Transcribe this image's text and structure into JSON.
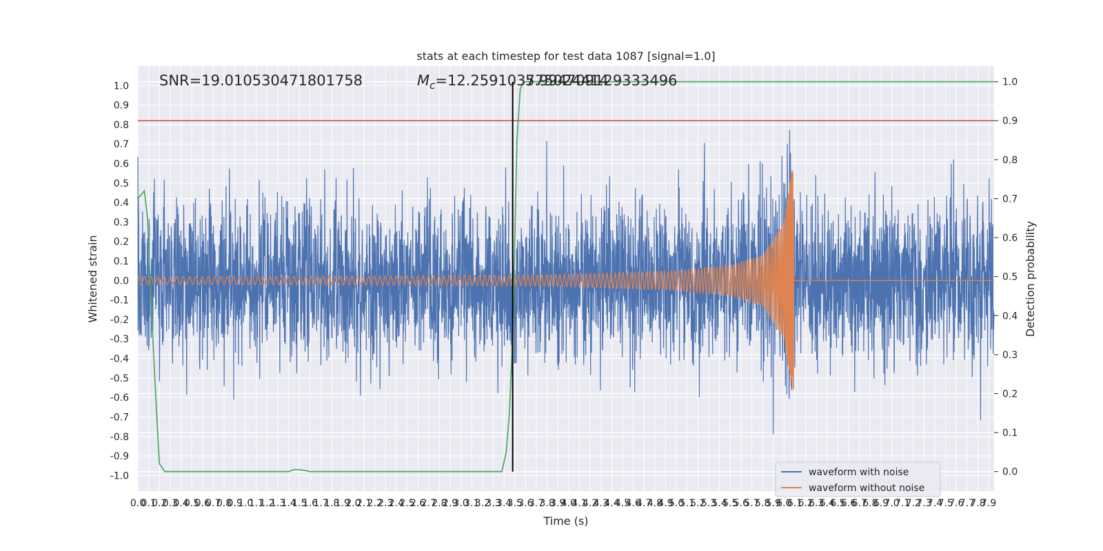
{
  "chart_data": {
    "type": "line",
    "title": "stats at each timestep for test data 1087 [signal=1.0]",
    "xlabel": "Time (s)",
    "ylabel": "Whitened strain",
    "ylabel_right": "Detection probability",
    "xlim": [
      0.0,
      7.95
    ],
    "ylim": [
      -1.08,
      1.1
    ],
    "ylim_right": [
      -0.05,
      1.04
    ],
    "x_ticks": [
      0.0,
      0.1,
      0.2,
      0.3,
      0.4,
      0.5,
      0.6,
      0.7,
      0.8,
      0.9,
      1.0,
      1.1,
      1.2,
      1.3,
      1.4,
      1.5,
      1.6,
      1.7,
      1.8,
      1.9,
      2.0,
      2.1,
      2.2,
      2.3,
      2.4,
      2.5,
      2.6,
      2.7,
      2.8,
      2.9,
      3.0,
      3.1,
      3.2,
      3.3,
      3.4,
      3.5,
      3.6,
      3.7,
      3.8,
      3.9,
      4.0,
      4.1,
      4.2,
      4.3,
      4.4,
      4.5,
      4.6,
      4.7,
      4.8,
      4.9,
      5.0,
      5.1,
      5.2,
      5.3,
      5.4,
      5.5,
      5.6,
      5.7,
      5.8,
      5.9,
      6.0,
      6.1,
      6.2,
      6.3,
      6.4,
      6.5,
      6.6,
      6.7,
      6.8,
      6.9,
      7.0,
      7.1,
      7.2,
      7.3,
      7.4,
      7.5,
      7.6,
      7.7,
      7.8,
      7.9
    ],
    "x_tick_labels": [
      "0.0",
      "0.1",
      "0.2",
      "0.3",
      "0.4",
      "0.5",
      "0.6",
      "0.7",
      "0.8",
      "0.9",
      "1.0",
      "1.1",
      "1.2",
      "1.3",
      "1.4",
      "1.5",
      "1.6",
      "1.7",
      "1.8",
      "1.9",
      "2.0",
      "2.1",
      "2.2",
      "2.3",
      "2.4",
      "2.5",
      "2.6",
      "2.7",
      "2.8",
      "2.9",
      "3.0",
      "3.1",
      "3.2",
      "3.3",
      "3.4",
      "3.5",
      "3.6",
      "3.7",
      "3.8",
      "3.9",
      "4.0",
      "4.1",
      "4.2",
      "4.3",
      "4.4",
      "4.5",
      "4.6",
      "4.7",
      "4.8",
      "4.9",
      "5.0",
      "5.1",
      "5.2",
      "5.3",
      "5.4",
      "5.5",
      "5.6",
      "5.7",
      "5.8",
      "5.9",
      "6.0",
      "6.1",
      "6.2",
      "6.3",
      "6.4",
      "6.5",
      "6.6",
      "6.7",
      "6.8",
      "6.9",
      "7.0",
      "7.1",
      "7.2",
      "7.3",
      "7.4",
      "7.5",
      "7.6",
      "7.7",
      "7.8",
      "7.9"
    ],
    "y_ticks": [
      1.0,
      0.9,
      0.8,
      0.7,
      0.6,
      0.5,
      0.4,
      0.3,
      0.2,
      0.1,
      0.0,
      -0.1,
      -0.2,
      -0.3,
      -0.4,
      -0.5,
      -0.6,
      -0.7,
      -0.8,
      -0.9,
      -1.0
    ],
    "y_tick_labels": [
      "1.0",
      "0.9",
      "0.8",
      "0.7",
      "0.6",
      "0.5",
      "0.4",
      "0.3",
      "0.2",
      "0.1",
      "0.0",
      "-0.1",
      "-0.2",
      "-0.3",
      "-0.4",
      "-0.5",
      "-0.6",
      "-0.7",
      "-0.8",
      "-0.9",
      "-1.0"
    ],
    "y_right_ticks": [
      1.0,
      0.9,
      0.8,
      0.7,
      0.6,
      0.5,
      0.4,
      0.3,
      0.2,
      0.1,
      0.0
    ],
    "y_right_tick_labels": [
      "1.0",
      "0.9",
      "0.8",
      "0.7",
      "0.6",
      "0.5",
      "0.4",
      "0.3",
      "0.2",
      "0.1",
      "0.0"
    ],
    "annotations": {
      "snr": "SNR=19.010530471801758",
      "mc_symbol": "M",
      "mc_sub": "c",
      "mc_value": "=12.259103775024414",
      "overlap": "5.994709129333496"
    },
    "grid": true,
    "legend_position": "lower-right",
    "series": [
      {
        "name": "waveform with noise",
        "color": "#4c72b0",
        "axis": "left",
        "noise_sd": 0.2,
        "noise_max_abs": 0.93
      },
      {
        "name": "waveform without noise",
        "color": "#dd8452",
        "axis": "left",
        "merger_time": 6.09,
        "amplitude_points": [
          [
            0.0,
            0.02
          ],
          [
            1.0,
            0.021
          ],
          [
            2.0,
            0.023
          ],
          [
            3.0,
            0.026
          ],
          [
            3.5,
            0.028
          ],
          [
            4.0,
            0.032
          ],
          [
            5.0,
            0.05
          ],
          [
            5.5,
            0.08
          ],
          [
            5.8,
            0.13
          ],
          [
            6.0,
            0.3
          ],
          [
            6.07,
            0.58
          ]
        ],
        "cycle_count": 160
      },
      {
        "axis": "right",
        "color": "#55a868",
        "x": [
          0.0,
          0.03,
          0.06,
          0.09,
          0.12,
          0.15,
          0.18,
          0.2,
          0.25,
          0.5,
          1.0,
          1.4,
          1.45,
          1.5,
          1.55,
          1.6,
          1.7,
          2.0,
          2.5,
          3.0,
          3.2,
          3.38,
          3.42,
          3.45,
          3.48,
          3.5,
          3.52,
          3.55,
          3.58,
          3.6,
          4.0,
          5.0,
          6.0,
          7.0,
          7.95
        ],
        "y": [
          0.7,
          0.71,
          0.72,
          0.65,
          0.45,
          0.28,
          0.12,
          0.02,
          0.0,
          0.0,
          0.0,
          0.0,
          0.005,
          0.005,
          0.003,
          0.0,
          0.0,
          0.0,
          0.0,
          0.0,
          0.0,
          0.0,
          0.05,
          0.15,
          0.35,
          0.6,
          0.85,
          0.98,
          1.0,
          1.0,
          1.0,
          1.0,
          1.0,
          1.0,
          1.0
        ]
      }
    ],
    "threshold_line": {
      "axis": "right",
      "value": 0.9,
      "color": "#c44e52"
    },
    "vertical_line": {
      "x": 3.48,
      "color": "#000000",
      "y_from": 0.0,
      "y_to": 1.0,
      "y_axis": "right"
    }
  }
}
